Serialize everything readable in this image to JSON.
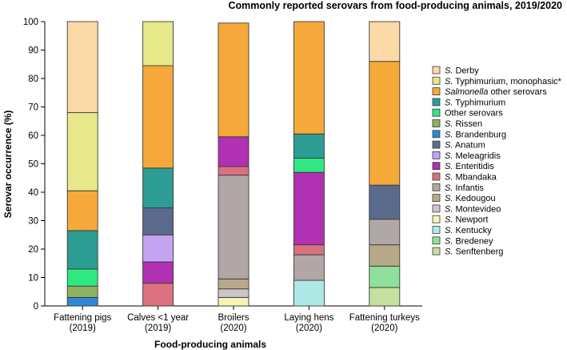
{
  "chart_data": {
    "type": "bar",
    "stacked": true,
    "title": "Commonly reported serovars from food-producing animals, 2019/2020",
    "xlabel": "Food-producing animals",
    "ylabel": "Serovar occurrence (%)",
    "ylim": [
      0,
      100
    ],
    "yticks": [
      0,
      10,
      20,
      30,
      40,
      50,
      60,
      70,
      80,
      90,
      100
    ],
    "grid": false,
    "legend_position": "right",
    "categories": [
      {
        "line1": "Fattening pigs",
        "line2": "(2019)"
      },
      {
        "line1": "Calves <1 year",
        "line2": "(2019)"
      },
      {
        "line1": "Broilers",
        "line2": "(2020)"
      },
      {
        "line1": "Laying hens",
        "line2": "(2020)"
      },
      {
        "line1": "Fattening turkeys",
        "line2": "(2020)"
      }
    ],
    "series": [
      {
        "prefix": "S.",
        "name": "Senftenberg",
        "color": "#c5e0a0",
        "values": [
          0,
          0,
          0,
          0,
          6.5
        ]
      },
      {
        "prefix": "S.",
        "name": "Bredeney",
        "color": "#8fe09a",
        "values": [
          0,
          0,
          0,
          0,
          7.5
        ]
      },
      {
        "prefix": "S.",
        "name": "Kentucky",
        "color": "#aee9e6",
        "values": [
          0,
          0,
          0,
          9,
          0
        ]
      },
      {
        "prefix": "S.",
        "name": "Newport",
        "color": "#f7f2b8",
        "values": [
          0,
          0,
          3,
          0,
          0
        ]
      },
      {
        "prefix": "S.",
        "name": "Montevideo",
        "color": "#c8c8c8",
        "values": [
          0,
          0,
          3,
          0,
          0
        ]
      },
      {
        "prefix": "S.",
        "name": "Kedougou",
        "color": "#b8a98a",
        "values": [
          0,
          0,
          3.5,
          0,
          7.5
        ]
      },
      {
        "prefix": "S.",
        "name": "Infantis",
        "color": "#b0a7a6",
        "values": [
          0,
          0,
          36.5,
          9,
          9
        ]
      },
      {
        "prefix": "S.",
        "name": "Mbandaka",
        "color": "#d9727e",
        "values": [
          0,
          8,
          3,
          3.5,
          0
        ]
      },
      {
        "prefix": "S.",
        "name": "Enteritidis",
        "color": "#b031b1",
        "values": [
          0,
          7.5,
          10.5,
          25.5,
          0
        ]
      },
      {
        "prefix": "S.",
        "name": "Meleagridis",
        "color": "#c3a4f0",
        "values": [
          0,
          9.5,
          0,
          0,
          0
        ]
      },
      {
        "prefix": "S.",
        "name": "Anatum",
        "color": "#5a6b8e",
        "values": [
          0,
          9.5,
          0,
          0,
          12
        ]
      },
      {
        "prefix": "S.",
        "name": "Brandenburg",
        "color": "#2f86d6",
        "values": [
          3,
          0,
          0,
          0,
          0
        ]
      },
      {
        "prefix": "S.",
        "name": "Rissen",
        "color": "#8db25f",
        "values": [
          4,
          0,
          0,
          0,
          0
        ]
      },
      {
        "prefix": "",
        "name": "Other serovars",
        "color": "#2ee884",
        "values": [
          6,
          0,
          0,
          5,
          0
        ]
      },
      {
        "prefix": "S.",
        "name": "Typhimurium",
        "color": "#2d9d94",
        "values": [
          13.5,
          14,
          0,
          8.5,
          0
        ]
      },
      {
        "prefix": "Salmonella",
        "name": "other serovars",
        "color": "#f5a93a",
        "values": [
          14,
          36,
          40,
          39.5,
          43.5
        ]
      },
      {
        "prefix": "S.",
        "name": "Typhimurium, monophasic*",
        "color": "#e6e88a",
        "values": [
          27.5,
          15.5,
          0,
          0,
          0
        ]
      },
      {
        "prefix": "S.",
        "name": "Derby",
        "color": "#fad9a6",
        "values": [
          32,
          0,
          0,
          0,
          14
        ]
      }
    ]
  }
}
